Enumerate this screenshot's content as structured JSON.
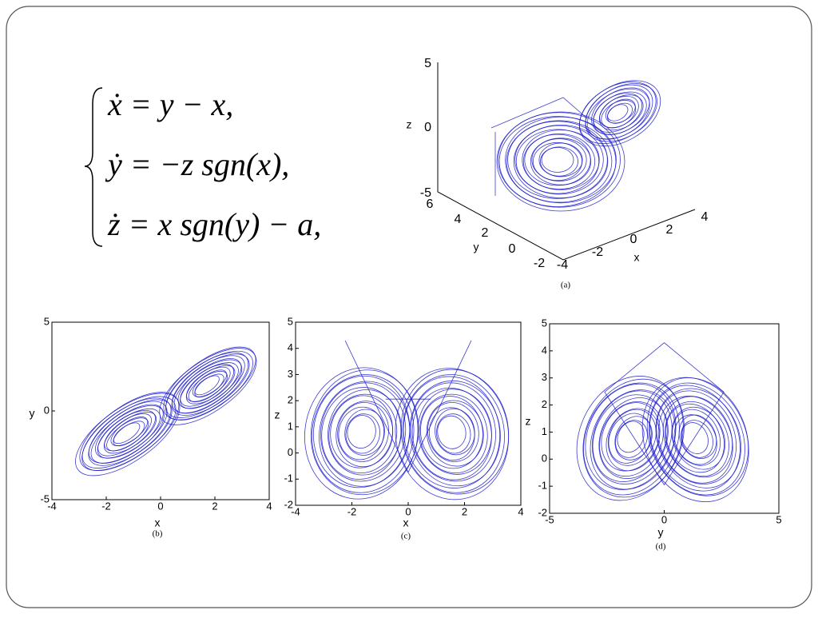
{
  "equations": [
    "ẋ = y − x,",
    "ẏ = −z sgn(x),",
    "ż = x sgn(y) − a,"
  ],
  "panels": [
    {
      "caption": "(a)",
      "xlabel": "x",
      "ylabel": "y",
      "zlabel": "z",
      "xticks": [
        -4,
        -2,
        0,
        2,
        4
      ],
      "yticks": [
        -2,
        0,
        2,
        4,
        6
      ],
      "zticks": [
        -5,
        0,
        5
      ]
    },
    {
      "caption": "(b)",
      "xlabel": "x",
      "ylabel": "y",
      "xticks": [
        -4,
        -2,
        0,
        2,
        4
      ],
      "yticks": [
        -5,
        0,
        5
      ]
    },
    {
      "caption": "(c)",
      "xlabel": "x",
      "ylabel": "z",
      "xticks": [
        -4,
        -2,
        0,
        2,
        4
      ],
      "yticks": [
        -2,
        -1,
        0,
        1,
        2,
        3,
        4,
        5
      ]
    },
    {
      "caption": "(d)",
      "xlabel": "y",
      "ylabel": "z",
      "xticks": [
        -5,
        0,
        5
      ],
      "yticks": [
        -2,
        -1,
        0,
        1,
        2,
        3,
        4,
        5
      ]
    }
  ]
}
